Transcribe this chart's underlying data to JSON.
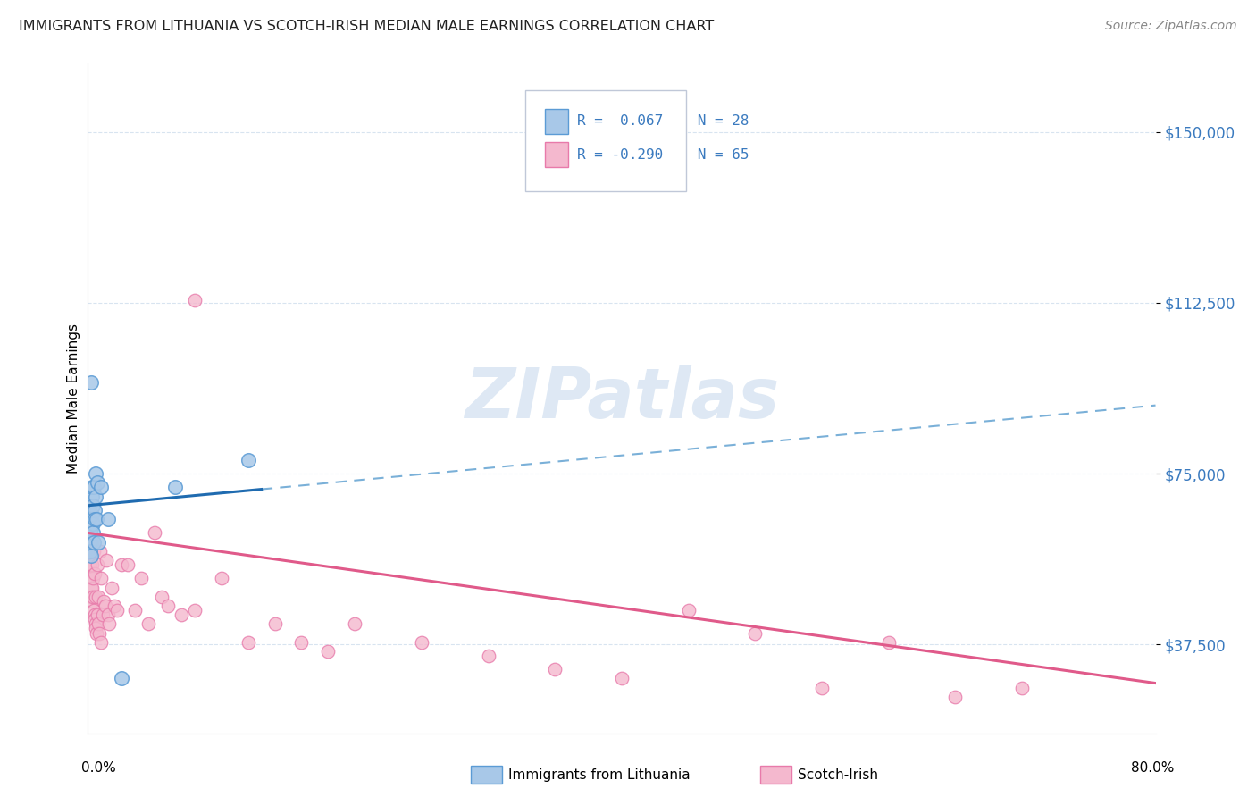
{
  "title": "IMMIGRANTS FROM LITHUANIA VS SCOTCH-IRISH MEDIAN MALE EARNINGS CORRELATION CHART",
  "source": "Source: ZipAtlas.com",
  "ylabel": "Median Male Earnings",
  "xlim": [
    0.0,
    80.0
  ],
  "ylim": [
    18000,
    165000
  ],
  "y_ticks": [
    37500,
    75000,
    112500,
    150000
  ],
  "y_tick_labels": [
    "$37,500",
    "$75,000",
    "$112,500",
    "$150,000"
  ],
  "blue_scatter_color": "#a8c8e8",
  "blue_edge_color": "#5b9bd5",
  "pink_scatter_color": "#f4b8ce",
  "pink_edge_color": "#e87aaa",
  "line_blue_solid": "#1f6bb0",
  "line_blue_dash": "#7ab0d8",
  "line_pink": "#e05a8a",
  "watermark": "ZIPatlas",
  "watermark_color": "#d0dff0",
  "background_color": "#ffffff",
  "grid_color": "#d8e4f0",
  "title_color": "#222222",
  "source_color": "#888888",
  "tick_color": "#3a7abf",
  "legend_R1": "R =  0.067",
  "legend_N1": "N = 28",
  "legend_R2": "R = -0.290",
  "legend_N2": "N = 65",
  "blue_x": [
    0.1,
    0.12,
    0.15,
    0.18,
    0.2,
    0.22,
    0.25,
    0.28,
    0.3,
    0.32,
    0.35,
    0.38,
    0.4,
    0.42,
    0.45,
    0.48,
    0.52,
    0.55,
    0.6,
    0.65,
    0.7,
    0.8,
    1.0,
    1.5,
    2.5,
    6.5,
    12.0,
    0.25
  ],
  "blue_y": [
    68000,
    65000,
    62000,
    60000,
    58000,
    63000,
    57000,
    70000,
    66000,
    72000,
    64000,
    68000,
    62000,
    60000,
    72000,
    67000,
    65000,
    75000,
    70000,
    65000,
    73000,
    60000,
    72000,
    65000,
    30000,
    72000,
    78000,
    95000
  ],
  "pink_x": [
    0.1,
    0.12,
    0.15,
    0.18,
    0.2,
    0.22,
    0.25,
    0.28,
    0.3,
    0.32,
    0.35,
    0.38,
    0.4,
    0.42,
    0.45,
    0.48,
    0.5,
    0.52,
    0.55,
    0.58,
    0.6,
    0.65,
    0.68,
    0.72,
    0.75,
    0.8,
    0.85,
    0.9,
    0.95,
    1.0,
    1.1,
    1.2,
    1.3,
    1.4,
    1.5,
    1.6,
    1.8,
    2.0,
    2.2,
    2.5,
    3.0,
    3.5,
    4.0,
    4.5,
    5.0,
    5.5,
    6.0,
    7.0,
    8.0,
    10.0,
    12.0,
    14.0,
    16.0,
    18.0,
    20.0,
    25.0,
    30.0,
    35.0,
    40.0,
    45.0,
    50.0,
    55.0,
    60.0,
    65.0,
    70.0
  ],
  "pink_y": [
    60000,
    58000,
    55000,
    57000,
    52000,
    50000,
    48000,
    60000,
    55000,
    50000,
    47000,
    48000,
    52000,
    45000,
    58000,
    44000,
    53000,
    43000,
    42000,
    48000,
    41000,
    40000,
    55000,
    44000,
    48000,
    42000,
    40000,
    58000,
    38000,
    52000,
    44000,
    47000,
    46000,
    56000,
    44000,
    42000,
    50000,
    46000,
    45000,
    55000,
    55000,
    45000,
    52000,
    42000,
    62000,
    48000,
    46000,
    44000,
    45000,
    52000,
    38000,
    42000,
    38000,
    36000,
    42000,
    38000,
    35000,
    32000,
    30000,
    45000,
    40000,
    28000,
    38000,
    26000,
    28000
  ],
  "pink_outlier_x": [
    8.0
  ],
  "pink_outlier_y": [
    113000
  ],
  "blue_line_x_start": 0.0,
  "blue_line_x_solid_end": 13.0,
  "blue_line_x_dash_end": 80.0,
  "blue_line_y_at_0": 68000,
  "blue_line_y_at_80": 90000,
  "pink_line_y_at_0": 62000,
  "pink_line_y_at_80": 29000
}
